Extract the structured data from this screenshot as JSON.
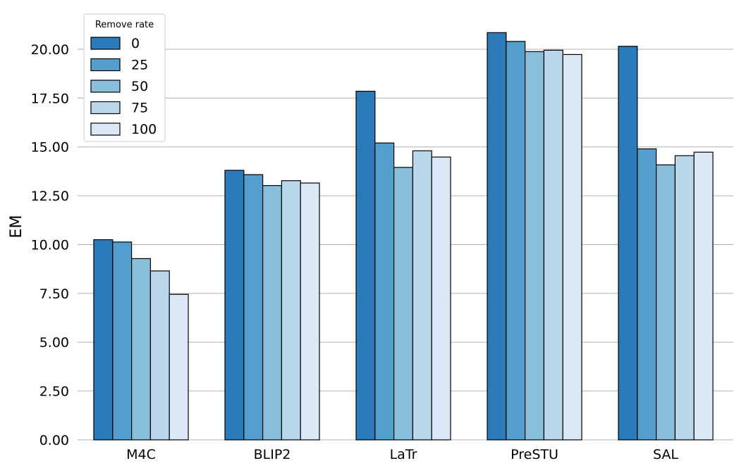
{
  "chart_data": {
    "type": "bar",
    "categories": [
      "M4C",
      "BLIP2",
      "LaTr",
      "PreSTU",
      "SAL"
    ],
    "series": [
      {
        "name": "0",
        "color": "#2b7bba",
        "values": [
          10.25,
          13.8,
          17.85,
          20.85,
          20.15
        ]
      },
      {
        "name": "25",
        "color": "#539ecd",
        "values": [
          10.13,
          13.58,
          15.2,
          20.4,
          14.9
        ]
      },
      {
        "name": "50",
        "color": "#89bedc",
        "values": [
          9.28,
          13.02,
          13.95,
          19.88,
          14.08
        ]
      },
      {
        "name": "75",
        "color": "#bad6eb",
        "values": [
          8.65,
          13.27,
          14.8,
          19.95,
          14.55
        ]
      },
      {
        "name": "100",
        "color": "#dbe9f6",
        "values": [
          7.45,
          13.15,
          14.48,
          19.73,
          14.73
        ]
      }
    ],
    "title": "",
    "xlabel": "",
    "ylabel": "EM",
    "ylim": [
      0,
      21.8
    ],
    "yticks": [
      0,
      2.5,
      5,
      7.5,
      10,
      12.5,
      15,
      17.5,
      20
    ],
    "ytick_labels": [
      "0.00",
      "2.50",
      "5.00",
      "7.50",
      "10.00",
      "12.50",
      "15.00",
      "17.50",
      "20.00"
    ],
    "grid": "y",
    "legend": {
      "title": "Remove rate",
      "position": "top-left"
    }
  }
}
